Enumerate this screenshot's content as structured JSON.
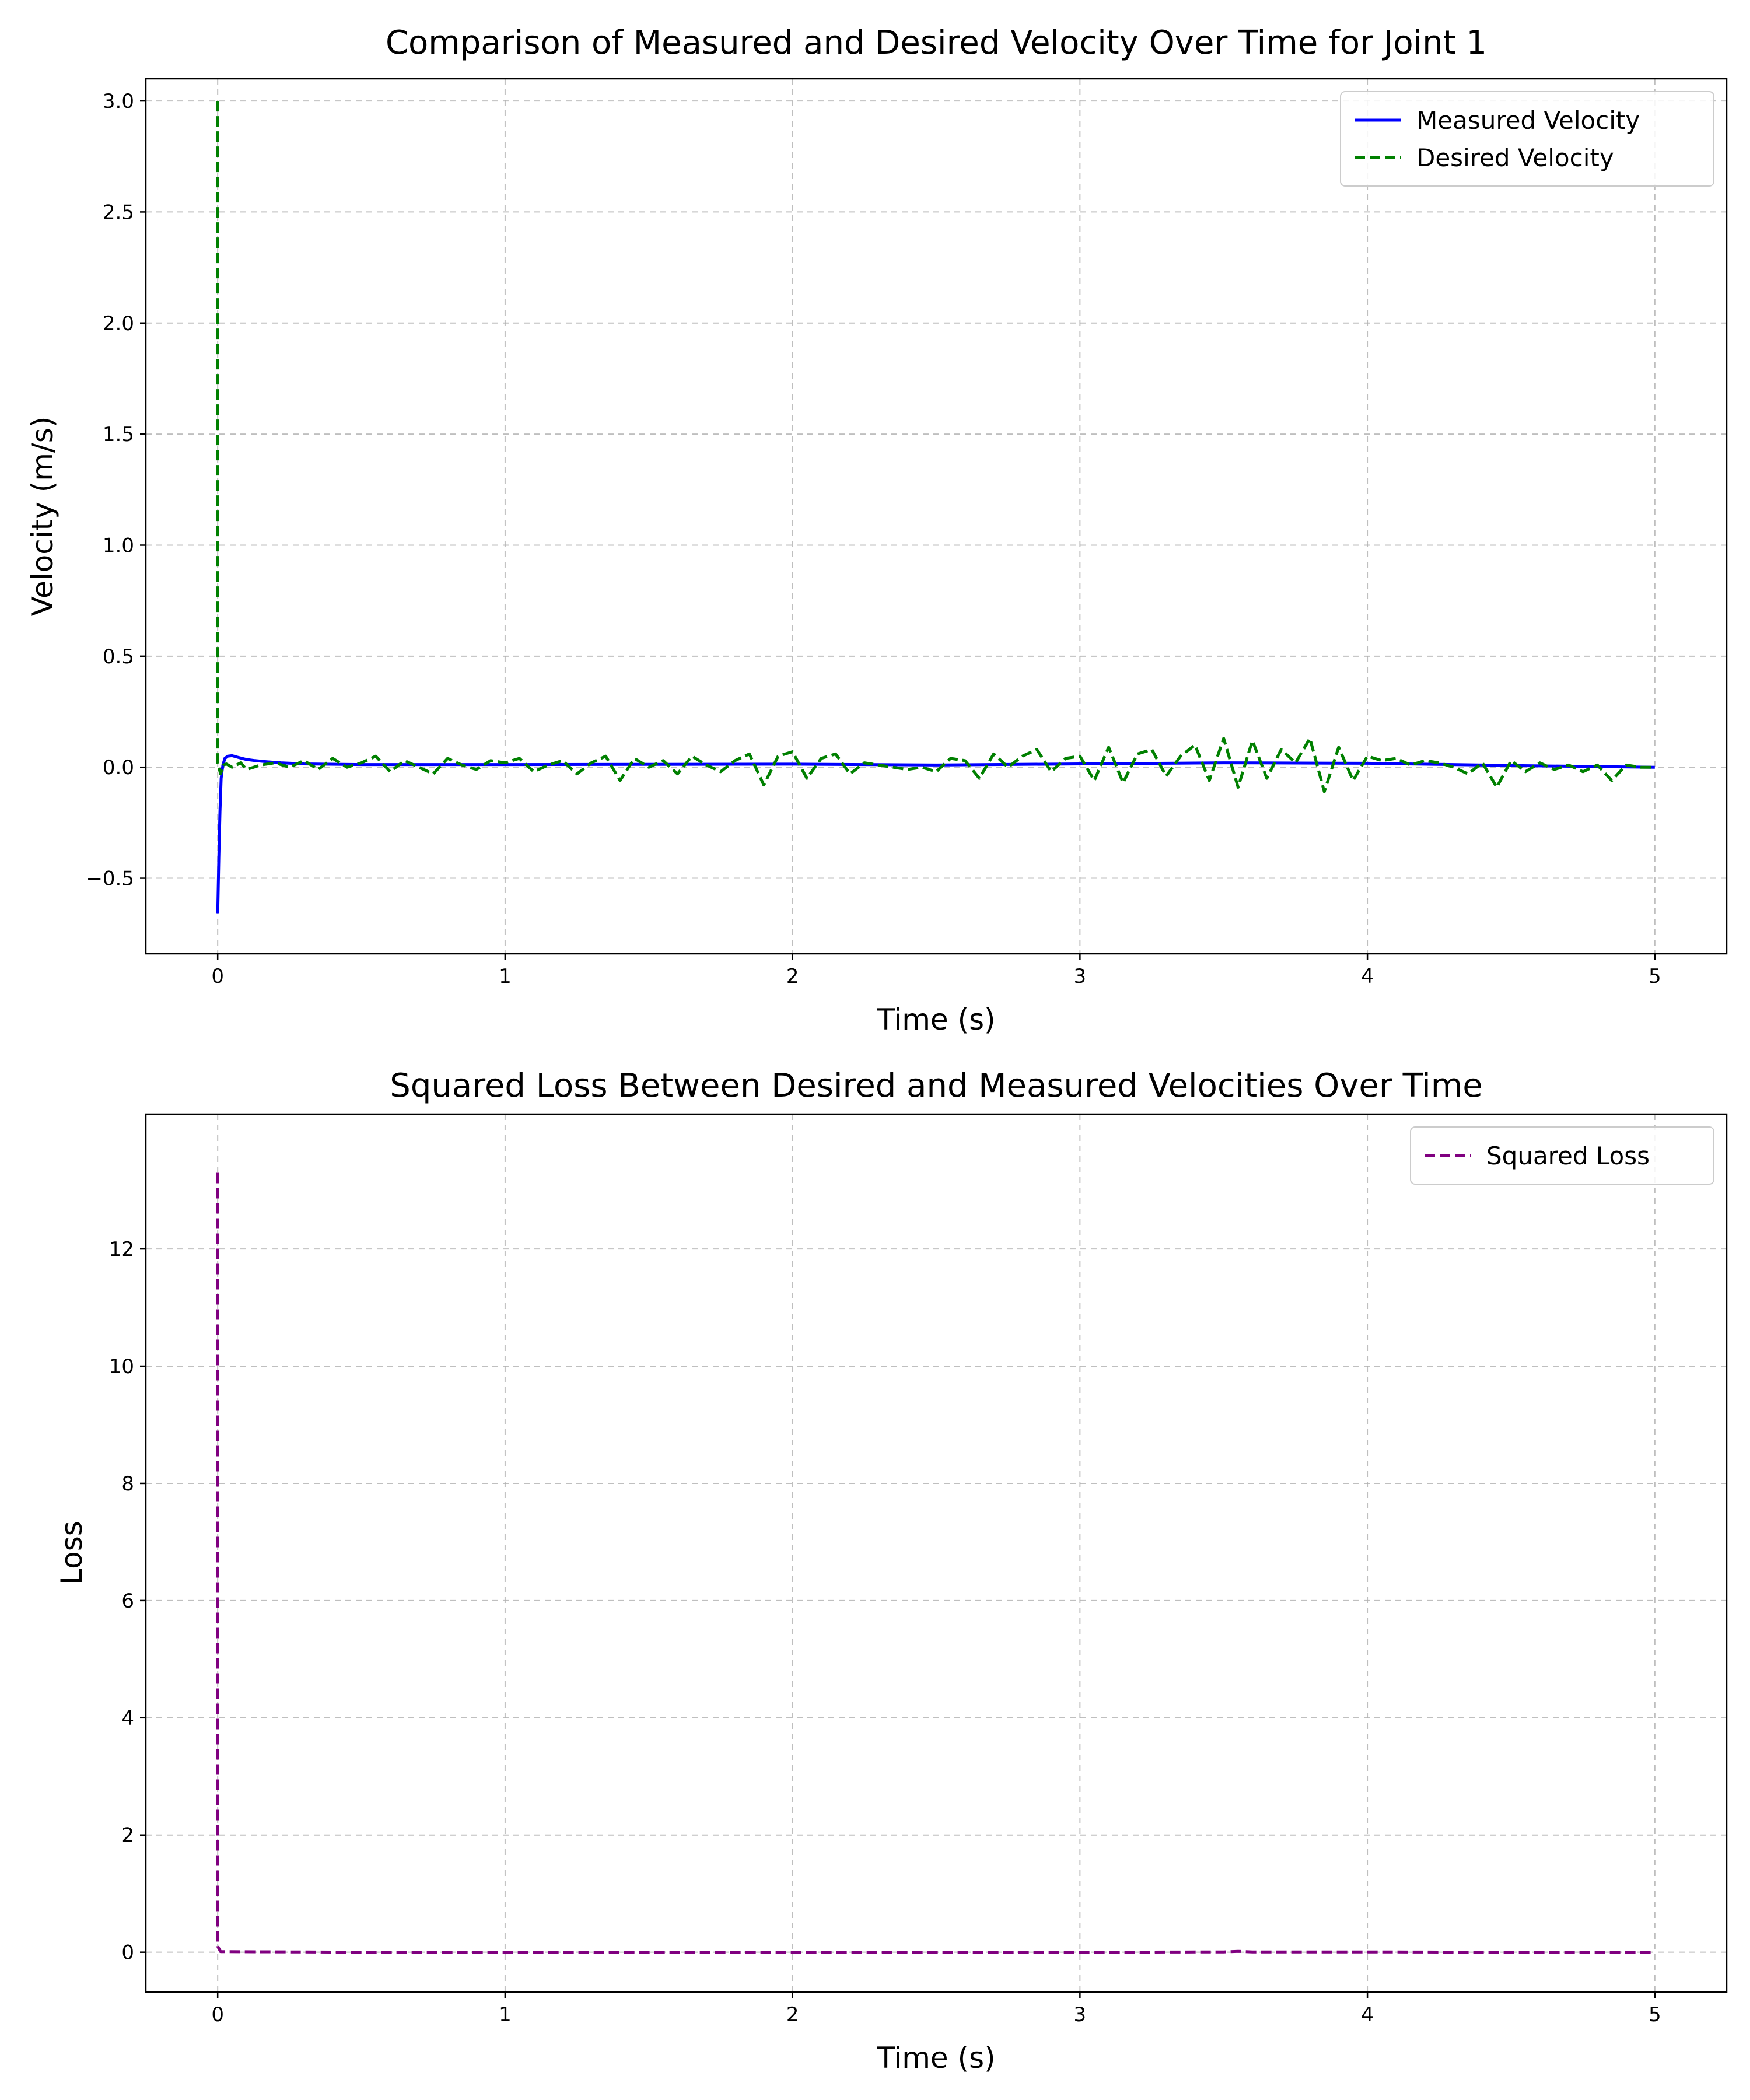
{
  "chart_data": [
    {
      "type": "line",
      "title": "Comparison of Measured and Desired Velocity Over Time for Joint 1",
      "xlabel": "Time (s)",
      "ylabel": "Velocity (m/s)",
      "xlim": [
        -0.25,
        5.25
      ],
      "ylim": [
        -0.84,
        3.1
      ],
      "xticks": [
        0,
        1,
        2,
        3,
        4,
        5
      ],
      "xtick_labels": [
        "0",
        "1",
        "2",
        "3",
        "4",
        "5"
      ],
      "yticks": [
        -0.5,
        0.0,
        0.5,
        1.0,
        1.5,
        2.0,
        2.5,
        3.0
      ],
      "ytick_labels": [
        "−0.5",
        "0.0",
        "0.5",
        "1.0",
        "1.5",
        "2.0",
        "2.5",
        "3.0"
      ],
      "grid": true,
      "legend": "top-right",
      "series": [
        {
          "name": "Measured Velocity",
          "color": "#0000ff",
          "style": "solid",
          "x": [
            0.0,
            0.004,
            0.008,
            0.012,
            0.018,
            0.025,
            0.035,
            0.05,
            0.07,
            0.1,
            0.13,
            0.17,
            0.22,
            0.3,
            0.5,
            1.0,
            1.5,
            2.0,
            2.5,
            3.0,
            3.5,
            4.0,
            4.5,
            4.8,
            5.0
          ],
          "y": [
            -0.66,
            -0.4,
            -0.2,
            -0.05,
            0.01,
            0.04,
            0.05,
            0.052,
            0.045,
            0.035,
            0.03,
            0.025,
            0.02,
            0.015,
            0.012,
            0.012,
            0.013,
            0.014,
            0.01,
            0.015,
            0.02,
            0.018,
            0.008,
            0.003,
            0.0
          ]
        },
        {
          "name": "Desired Velocity",
          "color": "#008000",
          "style": "dashed",
          "x": [
            0.0,
            0.0,
            0.01,
            0.02,
            0.03,
            0.05,
            0.08,
            0.1,
            0.15,
            0.2,
            0.25,
            0.3,
            0.35,
            0.4,
            0.45,
            0.5,
            0.55,
            0.6,
            0.65,
            0.7,
            0.75,
            0.8,
            0.85,
            0.9,
            0.95,
            1.0,
            1.05,
            1.1,
            1.15,
            1.2,
            1.25,
            1.3,
            1.35,
            1.4,
            1.45,
            1.5,
            1.55,
            1.6,
            1.65,
            1.7,
            1.75,
            1.8,
            1.85,
            1.9,
            1.95,
            2.0,
            2.05,
            2.1,
            2.15,
            2.2,
            2.25,
            2.3,
            2.35,
            2.4,
            2.45,
            2.5,
            2.55,
            2.6,
            2.65,
            2.7,
            2.75,
            2.8,
            2.85,
            2.9,
            2.95,
            3.0,
            3.05,
            3.1,
            3.15,
            3.2,
            3.25,
            3.3,
            3.35,
            3.4,
            3.45,
            3.5,
            3.55,
            3.6,
            3.65,
            3.7,
            3.75,
            3.8,
            3.85,
            3.9,
            3.95,
            4.0,
            4.05,
            4.1,
            4.15,
            4.2,
            4.25,
            4.3,
            4.35,
            4.4,
            4.45,
            4.5,
            4.55,
            4.6,
            4.65,
            4.7,
            4.75,
            4.8,
            4.85,
            4.9,
            4.95,
            5.0
          ],
          "y": [
            3.0,
            0.02,
            -0.03,
            0.01,
            0.015,
            0.0,
            0.02,
            -0.01,
            0.01,
            0.02,
            0.0,
            0.03,
            -0.01,
            0.04,
            0.0,
            0.02,
            0.05,
            -0.02,
            0.03,
            0.0,
            -0.03,
            0.04,
            0.01,
            -0.01,
            0.03,
            0.02,
            0.04,
            -0.02,
            0.01,
            0.03,
            -0.03,
            0.02,
            0.05,
            -0.06,
            0.04,
            0.0,
            0.03,
            -0.03,
            0.05,
            0.01,
            -0.02,
            0.03,
            0.06,
            -0.08,
            0.05,
            0.07,
            -0.05,
            0.04,
            0.06,
            -0.03,
            0.02,
            0.01,
            0.0,
            -0.01,
            0.0,
            -0.02,
            0.04,
            0.03,
            -0.05,
            0.06,
            0.0,
            0.05,
            0.08,
            -0.02,
            0.04,
            0.05,
            -0.06,
            0.09,
            -0.07,
            0.06,
            0.08,
            -0.04,
            0.05,
            0.1,
            -0.06,
            0.13,
            -0.09,
            0.12,
            -0.05,
            0.08,
            0.02,
            0.13,
            -0.11,
            0.09,
            -0.06,
            0.05,
            0.03,
            0.04,
            0.01,
            0.03,
            0.02,
            0.0,
            -0.03,
            0.02,
            -0.09,
            0.03,
            -0.02,
            0.02,
            -0.01,
            0.01,
            -0.02,
            0.01,
            -0.06,
            0.01,
            0.0,
            0.0
          ]
        }
      ]
    },
    {
      "type": "line",
      "title": "Squared Loss Between Desired and Measured Velocities Over Time",
      "xlabel": "Time (s)",
      "ylabel": "Loss",
      "xlim": [
        -0.25,
        5.25
      ],
      "ylim": [
        -0.68,
        14.3
      ],
      "xticks": [
        0,
        1,
        2,
        3,
        4,
        5
      ],
      "xtick_labels": [
        "0",
        "1",
        "2",
        "3",
        "4",
        "5"
      ],
      "yticks": [
        0,
        2,
        4,
        6,
        8,
        10,
        12
      ],
      "ytick_labels": [
        "0",
        "2",
        "4",
        "6",
        "8",
        "10",
        "12"
      ],
      "grid": true,
      "legend": "top-right",
      "series": [
        {
          "name": "Squared Loss",
          "color": "#800080",
          "style": "dashed",
          "x": [
            0.0,
            0.0,
            0.01,
            0.5,
            1.0,
            1.5,
            2.0,
            2.5,
            3.0,
            3.5,
            3.55,
            3.6,
            4.0,
            4.5,
            5.0
          ],
          "y": [
            13.3,
            0.1,
            0.01,
            0.0,
            0.0,
            0.0,
            0.0,
            0.0,
            0.0,
            0.005,
            0.015,
            0.005,
            0.005,
            0.0,
            0.0
          ]
        }
      ]
    }
  ]
}
